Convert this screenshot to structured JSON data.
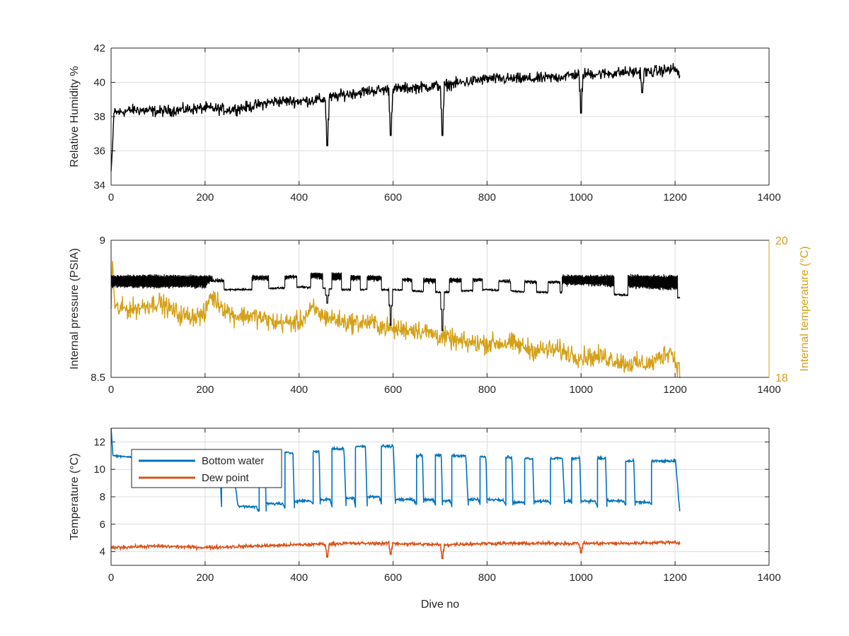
{
  "chart_data": [
    {
      "type": "line",
      "xlabel": "",
      "ylabel": "Relative Humidity %",
      "xlim": [
        0,
        1400
      ],
      "ylim": [
        34,
        42
      ],
      "xticks": [
        0,
        200,
        400,
        600,
        800,
        1000,
        1200,
        1400
      ],
      "yticks": [
        34,
        36,
        38,
        40,
        42
      ],
      "grid": true,
      "series": [
        {
          "color": "#000000",
          "trend": [
            [
              0,
              34.8
            ],
            [
              3,
              36.2
            ],
            [
              6,
              38.2
            ],
            [
              50,
              38.4
            ],
            [
              100,
              38.3
            ],
            [
              150,
              38.4
            ],
            [
              200,
              38.5
            ],
            [
              250,
              38.4
            ],
            [
              300,
              38.6
            ],
            [
              350,
              38.9
            ],
            [
              400,
              38.9
            ],
            [
              450,
              39.0
            ],
            [
              500,
              39.3
            ],
            [
              550,
              39.5
            ],
            [
              600,
              39.6
            ],
            [
              650,
              39.7
            ],
            [
              700,
              39.8
            ],
            [
              750,
              40.0
            ],
            [
              800,
              40.2
            ],
            [
              850,
              40.2
            ],
            [
              900,
              40.2
            ],
            [
              950,
              40.3
            ],
            [
              1000,
              40.5
            ],
            [
              1050,
              40.5
            ],
            [
              1100,
              40.6
            ],
            [
              1150,
              40.6
            ],
            [
              1200,
              40.8
            ],
            [
              1210,
              40.4
            ]
          ],
          "noise": 0.9,
          "dips": [
            [
              460,
              36.3
            ],
            [
              595,
              36.9
            ],
            [
              705,
              36.9
            ],
            [
              1000,
              38.2
            ],
            [
              1130,
              39.4
            ]
          ]
        }
      ]
    },
    {
      "type": "line",
      "xlabel": "",
      "ylabel": "Internal pressure (PSIA)",
      "y2label": "Internal temperature (°C)",
      "xlim": [
        0,
        1400
      ],
      "ylim": [
        8.5,
        9
      ],
      "y2lim": [
        18,
        20
      ],
      "xticks": [
        0,
        200,
        400,
        600,
        800,
        1000,
        1200,
        1400
      ],
      "yticks": [
        8.5,
        9
      ],
      "y2ticks": [
        18,
        20
      ],
      "grid": true,
      "series": [
        {
          "axis": "left",
          "color": "#000000",
          "base": [
            [
              0,
              8.8
            ],
            [
              200,
              8.8
            ],
            [
              210,
              8.82
            ],
            [
              300,
              8.82
            ],
            [
              400,
              8.83
            ],
            [
              500,
              8.82
            ],
            [
              600,
              8.82
            ],
            [
              700,
              8.81
            ],
            [
              800,
              8.82
            ],
            [
              900,
              8.81
            ],
            [
              1000,
              8.81
            ],
            [
              1100,
              8.8
            ],
            [
              1210,
              8.79
            ]
          ],
          "high": 8.87,
          "dense_bands": [
            [
              0,
              215
            ],
            [
              960,
              1070
            ],
            [
              1100,
              1205
            ]
          ],
          "bumps": [
            [
              215,
              240,
              8.85
            ],
            [
              300,
              335,
              8.87
            ],
            [
              370,
              395,
              8.87
            ],
            [
              425,
              450,
              8.88
            ],
            [
              470,
              490,
              8.88
            ],
            [
              510,
              530,
              8.87
            ],
            [
              545,
              575,
              8.87
            ],
            [
              620,
              640,
              8.86
            ],
            [
              665,
              690,
              8.86
            ],
            [
              720,
              745,
              8.86
            ],
            [
              770,
              790,
              8.86
            ],
            [
              825,
              850,
              8.85
            ],
            [
              880,
              905,
              8.85
            ],
            [
              930,
              955,
              8.85
            ],
            [
              995,
              1015,
              8.85
            ],
            [
              1040,
              1060,
              8.85
            ]
          ],
          "dips": [
            [
              460,
              8.77
            ],
            [
              595,
              8.69
            ],
            [
              705,
              8.67
            ]
          ]
        },
        {
          "axis": "right",
          "color": "#D4A017",
          "trend": [
            [
              0,
              19.0
            ],
            [
              3,
              19.7
            ],
            [
              8,
              19.0
            ],
            [
              50,
              19.0
            ],
            [
              100,
              19.1
            ],
            [
              150,
              18.9
            ],
            [
              200,
              18.9
            ],
            [
              210,
              19.2
            ],
            [
              260,
              18.9
            ],
            [
              300,
              18.9
            ],
            [
              350,
              18.8
            ],
            [
              400,
              18.8
            ],
            [
              430,
              19.0
            ],
            [
              450,
              18.9
            ],
            [
              500,
              18.8
            ],
            [
              550,
              18.8
            ],
            [
              600,
              18.7
            ],
            [
              650,
              18.7
            ],
            [
              700,
              18.6
            ],
            [
              750,
              18.5
            ],
            [
              800,
              18.5
            ],
            [
              850,
              18.5
            ],
            [
              900,
              18.4
            ],
            [
              950,
              18.4
            ],
            [
              1000,
              18.3
            ],
            [
              1050,
              18.3
            ],
            [
              1100,
              18.2
            ],
            [
              1150,
              18.2
            ],
            [
              1190,
              18.4
            ],
            [
              1210,
              18.1
            ]
          ],
          "noise": 0.22
        }
      ]
    },
    {
      "type": "line",
      "xlabel": "Dive no",
      "ylabel": "Temperature (°C)",
      "xlim": [
        0,
        1400
      ],
      "ylim": [
        3,
        13
      ],
      "xticks": [
        0,
        200,
        400,
        600,
        800,
        1000,
        1200,
        1400
      ],
      "yticks": [
        4,
        6,
        8,
        10,
        12
      ],
      "grid": true,
      "legend": "top-left",
      "series": [
        {
          "name": "Bottom water",
          "color": "#0072BD",
          "start": [
            [
              0,
              13.0
            ],
            [
              4,
              11.0
            ],
            [
              210,
              10.5
            ]
          ],
          "cycles": [
            [
              210,
              235,
              10.5,
              7.3
            ],
            [
              235,
              270,
              8.8,
              7.3
            ],
            [
              270,
              315,
              7.3,
              6.9
            ],
            [
              315,
              330,
              10.8,
              6.9
            ],
            [
              330,
              370,
              7.5,
              7.2
            ],
            [
              370,
              390,
              11.2,
              7.2
            ],
            [
              390,
              430,
              7.7,
              7.5
            ],
            [
              430,
              445,
              11.3,
              7.5
            ],
            [
              445,
              470,
              7.8,
              7.3
            ],
            [
              470,
              500,
              11.5,
              7.3
            ],
            [
              500,
              520,
              7.9,
              7.2
            ],
            [
              520,
              545,
              11.7,
              7.2
            ],
            [
              545,
              575,
              8.0,
              7.5
            ],
            [
              575,
              605,
              11.7,
              7.5
            ],
            [
              605,
              650,
              7.8,
              7.5
            ],
            [
              650,
              665,
              11.0,
              7.5
            ],
            [
              665,
              690,
              7.8,
              7.4
            ],
            [
              690,
              705,
              11.0,
              7.4
            ],
            [
              705,
              725,
              7.7,
              7.3
            ],
            [
              725,
              760,
              11.0,
              7.3
            ],
            [
              760,
              785,
              7.8,
              7.5
            ],
            [
              785,
              800,
              10.9,
              7.5
            ],
            [
              800,
              840,
              7.8,
              7.4
            ],
            [
              840,
              855,
              10.9,
              7.4
            ],
            [
              855,
              880,
              7.6,
              7.4
            ],
            [
              880,
              900,
              10.8,
              7.4
            ],
            [
              900,
              935,
              7.7,
              7.5
            ],
            [
              935,
              965,
              10.8,
              7.5
            ],
            [
              965,
              980,
              7.7,
              7.5
            ],
            [
              980,
              1000,
              10.8,
              7.5
            ],
            [
              1000,
              1035,
              7.7,
              7.3
            ],
            [
              1035,
              1055,
              10.8,
              7.3
            ],
            [
              1055,
              1095,
              7.7,
              7.4
            ],
            [
              1095,
              1115,
              10.6,
              7.4
            ],
            [
              1115,
              1150,
              7.6,
              7.4
            ],
            [
              1150,
              1210,
              10.6,
              6.9
            ]
          ],
          "noise": 0.25
        },
        {
          "name": "Dew point",
          "color": "#D95319",
          "trend": [
            [
              0,
              4.3
            ],
            [
              100,
              4.4
            ],
            [
              200,
              4.3
            ],
            [
              300,
              4.4
            ],
            [
              400,
              4.5
            ],
            [
              500,
              4.6
            ],
            [
              600,
              4.6
            ],
            [
              700,
              4.5
            ],
            [
              800,
              4.6
            ],
            [
              900,
              4.6
            ],
            [
              1000,
              4.6
            ],
            [
              1100,
              4.6
            ],
            [
              1200,
              4.7
            ],
            [
              1210,
              4.6
            ]
          ],
          "noise": 0.35,
          "dips": [
            [
              460,
              3.6
            ],
            [
              595,
              3.8
            ],
            [
              705,
              3.5
            ],
            [
              1000,
              3.9
            ]
          ]
        }
      ]
    }
  ]
}
